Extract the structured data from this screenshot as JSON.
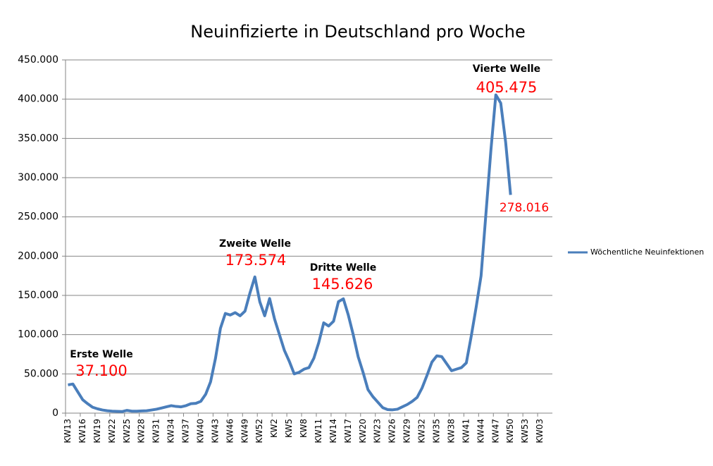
{
  "chart_data": {
    "type": "line",
    "title": "Neuinfizierte in Deutschland pro Woche",
    "categories": [
      "KW13",
      null,
      null,
      "KW16",
      null,
      null,
      "KW19",
      null,
      null,
      "KW22",
      null,
      null,
      "KW25",
      null,
      null,
      "KW28",
      null,
      null,
      "KW31",
      null,
      null,
      "KW34",
      null,
      null,
      "KW37",
      null,
      null,
      "KW40",
      null,
      null,
      "KW43",
      null,
      null,
      "KW46",
      null,
      null,
      "KW49",
      null,
      null,
      "KW52",
      null,
      null,
      "KW2",
      null,
      null,
      "KW5",
      null,
      null,
      "KW8",
      null,
      null,
      "KW11",
      null,
      null,
      "KW14",
      null,
      null,
      "KW17",
      null,
      null,
      "KW20",
      null,
      null,
      "KW23",
      null,
      null,
      "KW26",
      null,
      null,
      "KW29",
      null,
      null,
      "KW32",
      null,
      null,
      "KW35",
      null,
      null,
      "KW38",
      null,
      null,
      "KW41",
      null,
      null,
      "KW44",
      null,
      null,
      "KW47",
      null,
      null,
      "KW50",
      null,
      null,
      "KW53",
      null,
      null,
      "KW03",
      null,
      null
    ],
    "series": [
      {
        "name": "Wöchentliche Neuinfektionen",
        "color": "#4a7ebb",
        "values": [
          36000,
          37100,
          27000,
          17000,
          12000,
          7500,
          5500,
          4000,
          3000,
          2500,
          2200,
          2000,
          3500,
          2500,
          2500,
          2800,
          3000,
          4000,
          5000,
          6500,
          8000,
          9500,
          8500,
          8000,
          9500,
          12000,
          12500,
          15000,
          24000,
          40000,
          70000,
          108000,
          127000,
          125000,
          128000,
          124000,
          130000,
          153000,
          173574,
          142000,
          124000,
          146000,
          120000,
          100000,
          80000,
          66000,
          50000,
          52000,
          56000,
          58000,
          70000,
          90000,
          115000,
          111000,
          117000,
          142000,
          145626,
          125000,
          100000,
          72000,
          52000,
          30000,
          21000,
          14000,
          7000,
          4500,
          4200,
          5000,
          8000,
          11000,
          15000,
          20000,
          32000,
          48000,
          65000,
          73000,
          72000,
          63000,
          54000,
          56000,
          58000,
          64000,
          98000,
          135000,
          175000,
          255000,
          335000,
          405475,
          395000,
          345000,
          278016,
          null,
          null,
          null,
          null,
          null,
          null,
          null,
          null
        ],
        "value_labels": [
          null,
          "37.100",
          null,
          null,
          null,
          null,
          null,
          null,
          null,
          null,
          null,
          null,
          null,
          null,
          null,
          null,
          null,
          null,
          null,
          null,
          null,
          null,
          null,
          null,
          null,
          null,
          null,
          null,
          null,
          null,
          null,
          null,
          null,
          null,
          null,
          null,
          null,
          null,
          "173.574",
          null,
          null,
          null,
          null,
          null,
          null,
          null,
          null,
          null,
          null,
          null,
          null,
          null,
          null,
          null,
          null,
          null,
          "145.626",
          null,
          null,
          null,
          null,
          null,
          null,
          null,
          null,
          null,
          null,
          null,
          null,
          null,
          null,
          null,
          null,
          null,
          null,
          null,
          null,
          null,
          null,
          null,
          null,
          null,
          null,
          null,
          null,
          null,
          null,
          "405.475",
          null,
          null,
          "278.016",
          null,
          null,
          null,
          null,
          null,
          null,
          null,
          null
        ]
      }
    ],
    "annotations": [
      "Erste Welle",
      "Zweite Welle",
      "Dritte Welle",
      "Vierte Welle"
    ],
    "ylim": [
      0,
      450000
    ],
    "yticks": [
      0,
      {
        "value": 50000,
        "label": "50.000"
      },
      {
        "value": 100000,
        "label": "100.000"
      },
      {
        "value": 150000,
        "label": "150.000"
      },
      {
        "value": 200000,
        "label": "200.000"
      },
      {
        "value": 250000,
        "label": "250.000"
      },
      {
        "value": 300000,
        "label": "300.000"
      },
      {
        "value": 350000,
        "label": "350.000"
      },
      {
        "value": 400000,
        "label": "400.000"
      },
      {
        "value": 450000,
        "label": "450.000"
      }
    ],
    "grid": true,
    "legend": "right"
  }
}
